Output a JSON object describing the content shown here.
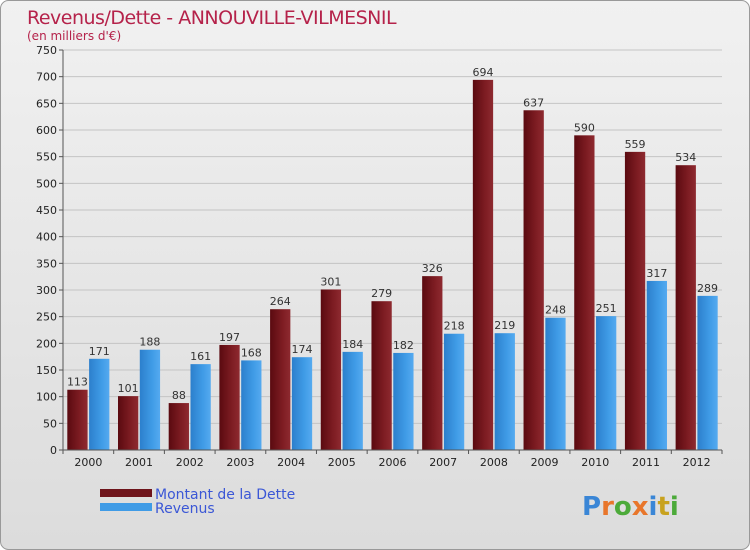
{
  "chart_data": {
    "type": "bar",
    "title": "Revenus/Dette - ANNOUVILLE-VILMESNIL",
    "subtitle": "(en milliers d'€)",
    "categories": [
      "2000",
      "2001",
      "2002",
      "2003",
      "2004",
      "2005",
      "2006",
      "2007",
      "2008",
      "2009",
      "2010",
      "2011",
      "2012"
    ],
    "series": [
      {
        "name": "Montant de la Dette",
        "color": "#7d1c22",
        "values": [
          113,
          101,
          88,
          197,
          264,
          301,
          279,
          326,
          694,
          637,
          590,
          559,
          534
        ]
      },
      {
        "name": "Revenus",
        "color": "#3f9be6",
        "values": [
          171,
          188,
          161,
          168,
          174,
          184,
          182,
          218,
          219,
          248,
          251,
          317,
          289
        ]
      }
    ],
    "ylim": [
      0,
      750
    ],
    "yticks": [
      0,
      50,
      100,
      150,
      200,
      250,
      300,
      350,
      400,
      450,
      500,
      550,
      600,
      650,
      700,
      750
    ],
    "grid": true,
    "legend": "bottom-left"
  },
  "logo": {
    "text": "Proxiti",
    "letters": [
      "P",
      "r",
      "o",
      "x",
      "i",
      "t",
      "i"
    ],
    "colors": [
      "#3a86d6",
      "#e8762b",
      "#4caa3a",
      "#e8762b",
      "#3a86d6",
      "#c8a21e",
      "#4caa3a"
    ]
  }
}
